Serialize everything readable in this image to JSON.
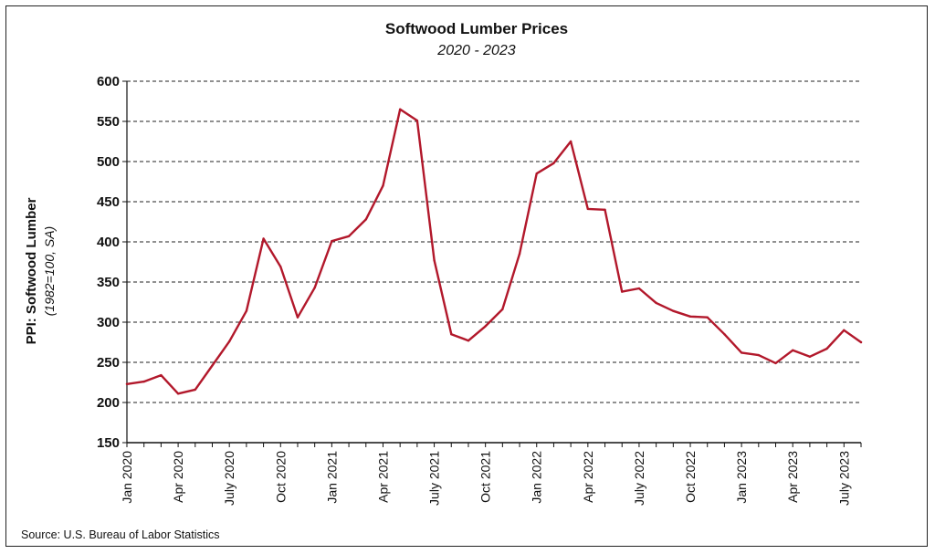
{
  "chart_data": {
    "type": "line",
    "title": "Softwood Lumber Prices",
    "subtitle": "2020 - 2023",
    "ylabel": "PPI: Softwood Lumber",
    "ylabel_sub": "(1982=100, SA)",
    "xlabel": "",
    "ylim": [
      150,
      600
    ],
    "yticks": [
      150,
      200,
      250,
      300,
      350,
      400,
      450,
      500,
      550,
      600
    ],
    "xticks": [
      {
        "label": "Jan 2020",
        "index": 0
      },
      {
        "label": "Apr 2020",
        "index": 3
      },
      {
        "label": "July 2020",
        "index": 6
      },
      {
        "label": "Oct 2020",
        "index": 9
      },
      {
        "label": "Jan 2021",
        "index": 12
      },
      {
        "label": "Apr 2021",
        "index": 15
      },
      {
        "label": "July 2021",
        "index": 18
      },
      {
        "label": "Oct 2021",
        "index": 21
      },
      {
        "label": "Jan 2022",
        "index": 24
      },
      {
        "label": "Apr 2022",
        "index": 27
      },
      {
        "label": "July 2022",
        "index": 30
      },
      {
        "label": "Oct 2022",
        "index": 33
      },
      {
        "label": "Jan 2023",
        "index": 36
      },
      {
        "label": "Apr 2023",
        "index": 39
      },
      {
        "label": "July 2023",
        "index": 42
      }
    ],
    "grid": "horizontal-dashed",
    "series": [
      {
        "color": "#b2182b",
        "x": [
          "2020-01",
          "2020-02",
          "2020-03",
          "2020-04",
          "2020-05",
          "2020-06",
          "2020-07",
          "2020-08",
          "2020-09",
          "2020-10",
          "2020-11",
          "2020-12",
          "2021-01",
          "2021-02",
          "2021-03",
          "2021-04",
          "2021-05",
          "2021-06",
          "2021-07",
          "2021-08",
          "2021-09",
          "2021-10",
          "2021-11",
          "2021-12",
          "2022-01",
          "2022-02",
          "2022-03",
          "2022-04",
          "2022-05",
          "2022-06",
          "2022-07",
          "2022-08",
          "2022-09",
          "2022-10",
          "2022-11",
          "2022-12",
          "2023-01",
          "2023-02",
          "2023-03",
          "2023-04",
          "2023-05",
          "2023-06",
          "2023-07",
          "2023-08"
        ],
        "values": [
          223,
          226,
          234,
          211,
          216,
          246,
          276,
          314,
          404,
          369,
          306,
          343,
          401,
          407,
          428,
          470,
          565,
          551,
          377,
          285,
          277,
          295,
          316,
          385,
          485,
          498,
          525,
          441,
          440,
          338,
          342,
          324,
          314,
          307,
          306,
          285,
          262,
          259,
          249,
          265,
          257,
          267,
          290,
          275
        ]
      }
    ]
  },
  "source": "Source: U.S. Bureau of Labor Statistics"
}
